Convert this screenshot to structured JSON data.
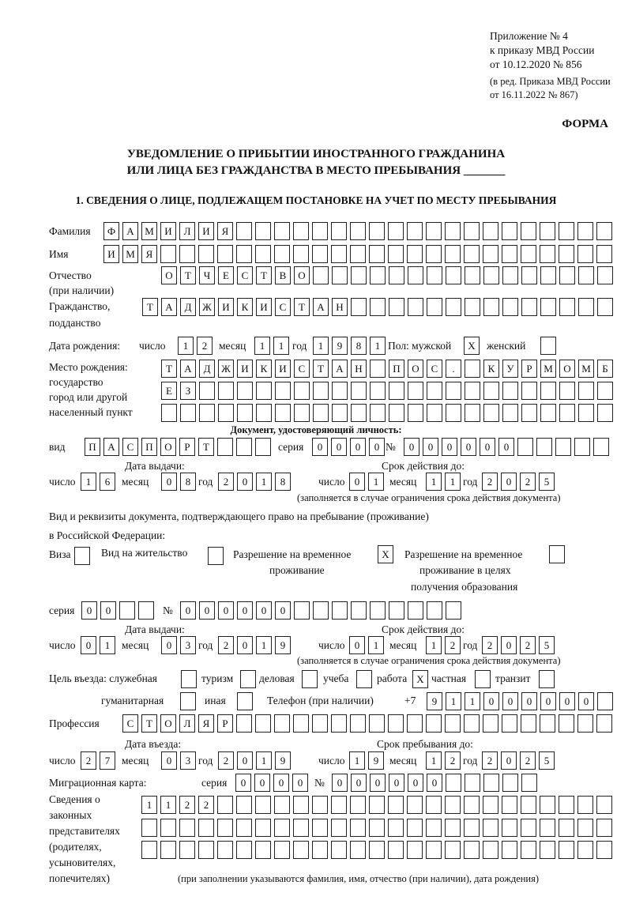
{
  "header": {
    "appendix": "Приложение № 4",
    "order": "к приказу МВД России",
    "order_date": "от 10.12.2020 № 856",
    "edition1": "(в ред. Приказа МВД России",
    "edition2": "от 16.11.2022 № 867)",
    "form_label": "ФОРМА",
    "title1": "УВЕДОМЛЕНИЕ О ПРИБЫТИИ ИНОСТРАННОГО ГРАЖДАНИНА",
    "title2": "ИЛИ ЛИЦА БЕЗ ГРАЖДАНСТВА В МЕСТО ПРЕБЫВАНИЯ _______",
    "section1": "1. СВЕДЕНИЯ О ЛИЦЕ, ПОДЛЕЖАЩЕМ ПОСТАНОВКЕ НА УЧЕТ ПО МЕСТУ ПРЕБЫВАНИЯ"
  },
  "labels": {
    "surname": "Фамилия",
    "name": "Имя",
    "patronymic": "Отчество",
    "if_any": "(при наличии)",
    "citizenship1": "Гражданство,",
    "citizenship2": "подданство",
    "dob": "Дата рождения:",
    "day": "число",
    "month": "месяц",
    "year": "год",
    "sex": "Пол: мужской",
    "female": "женский",
    "pob1": "Место рождения:",
    "pob2": "государство",
    "pob3": "город или другой",
    "pob4": "населенный пункт",
    "id_doc": "Документ, удостоверяющий личность:",
    "kind": "вид",
    "series": "серия",
    "number": "№",
    "issue_date": "Дата выдачи:",
    "valid_until": "Срок действия до:",
    "validity_note": "(заполняется в случае ограничения срока действия документа)",
    "permit_doc1": "Вид и реквизиты документа, подтверждающего право на пребывание (проживание)",
    "permit_doc2": "в Российской Федерации:",
    "visa": "Виза",
    "residence": "Вид на жительство",
    "temp1": "Разрешение на временное",
    "temp2": "проживание",
    "edu1": "Разрешение на временное",
    "edu2": "проживание в целях",
    "edu3": "получения образования",
    "purpose": "Цель въезда: служебная",
    "tourism": "туризм",
    "business": "деловая",
    "study": "учеба",
    "work": "работа",
    "private": "частная",
    "transit": "транзит",
    "humanitarian": "гуманитарная",
    "other": "иная",
    "phone": "Телефон (при наличии)",
    "phone_prefix": "+7",
    "profession": "Профессия",
    "entry_date": "Дата въезда:",
    "stay_until": "Срок пребывания до:",
    "migration_card": "Миграционная карта:",
    "rep1": "Сведения о",
    "rep2": "законных",
    "rep3": "представителях",
    "rep4": "(родителях,",
    "rep5": "усыновителях,",
    "rep6": "попечителях)",
    "rep_note": "(при заполнении указываются фамилия, имя, отчество (при наличии), дата рождения)"
  },
  "values": {
    "surname": "ФАМИЛИЯ",
    "name": "ИМЯ",
    "patronymic": "ОТЧЕСТВО",
    "citizenship": "ТАДЖИКИСТАН",
    "dob_day": "12",
    "dob_month": "11",
    "dob_year": "1981",
    "sex_male": "X",
    "sex_female": "",
    "pob1": "ТАДЖИКИСТАН ПОС. КУРМОМБ",
    "pob2": "ЕЗ",
    "pob3": "",
    "id_kind": "ПАСПОРТ",
    "id_series": "0000",
    "id_number": "000000",
    "id_issue_day": "16",
    "id_issue_month": "08",
    "id_issue_year": "2018",
    "id_valid_day": "01",
    "id_valid_month": "11",
    "id_valid_year": "2025",
    "permit_visa": "",
    "permit_residence": "",
    "permit_temp": "X",
    "permit_edu": "",
    "permit_series": "00",
    "permit_number": "000000",
    "permit_issue_day": "01",
    "permit_issue_month": "03",
    "permit_issue_year": "2019",
    "permit_valid_day": "01",
    "permit_valid_month": "12",
    "permit_valid_year": "2025",
    "purpose_service": "",
    "purpose_tourism": "",
    "purpose_business": "",
    "purpose_study": "",
    "purpose_work": "X",
    "purpose_private": "",
    "purpose_transit": "",
    "purpose_humanitarian": "",
    "purpose_other": "",
    "phone": "911000000",
    "profession": "СТОЛЯР",
    "entry_day": "27",
    "entry_month": "03",
    "entry_year": "2019",
    "stay_day": "19",
    "stay_month": "12",
    "stay_year": "2025",
    "mc_series": "0000",
    "mc_number": "000000",
    "rep1": "1122",
    "rep2": "",
    "rep3": ""
  }
}
